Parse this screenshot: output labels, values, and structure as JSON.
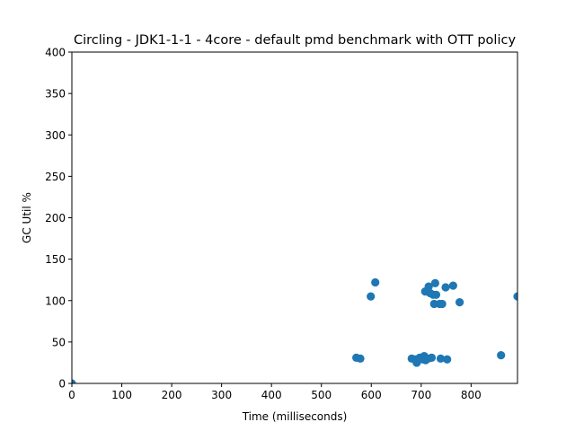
{
  "chart_data": {
    "type": "scatter",
    "title": "Circling - JDK1-1-1 - 4core -  default pmd benchmark with OTT policy",
    "xlabel": "Time (milliseconds)",
    "ylabel": "GC Util %",
    "xlim": [
      0,
      893
    ],
    "ylim": [
      0,
      400
    ],
    "xticks": [
      "0",
      "100",
      "200",
      "300",
      "400",
      "500",
      "600",
      "700",
      "800"
    ],
    "yticks": [
      "0",
      "50",
      "100",
      "150",
      "200",
      "250",
      "300",
      "350",
      "400"
    ],
    "grid": false,
    "series": [
      {
        "color": "#1f77b4",
        "points": [
          {
            "x": 0,
            "y": 0
          },
          {
            "x": 570,
            "y": 31
          },
          {
            "x": 578,
            "y": 30
          },
          {
            "x": 599,
            "y": 105
          },
          {
            "x": 608,
            "y": 122
          },
          {
            "x": 681,
            "y": 30
          },
          {
            "x": 688,
            "y": 29
          },
          {
            "x": 691,
            "y": 25
          },
          {
            "x": 697,
            "y": 31
          },
          {
            "x": 703,
            "y": 29
          },
          {
            "x": 706,
            "y": 33
          },
          {
            "x": 708,
            "y": 111
          },
          {
            "x": 709,
            "y": 28
          },
          {
            "x": 714,
            "y": 30
          },
          {
            "x": 715,
            "y": 117
          },
          {
            "x": 718,
            "y": 109
          },
          {
            "x": 721,
            "y": 31
          },
          {
            "x": 724,
            "y": 107
          },
          {
            "x": 726,
            "y": 96
          },
          {
            "x": 728,
            "y": 121
          },
          {
            "x": 730,
            "y": 107
          },
          {
            "x": 737,
            "y": 96
          },
          {
            "x": 739,
            "y": 30
          },
          {
            "x": 742,
            "y": 96
          },
          {
            "x": 749,
            "y": 116
          },
          {
            "x": 752,
            "y": 29
          },
          {
            "x": 764,
            "y": 118
          },
          {
            "x": 777,
            "y": 98
          },
          {
            "x": 860,
            "y": 34
          },
          {
            "x": 893,
            "y": 105
          }
        ]
      }
    ]
  }
}
